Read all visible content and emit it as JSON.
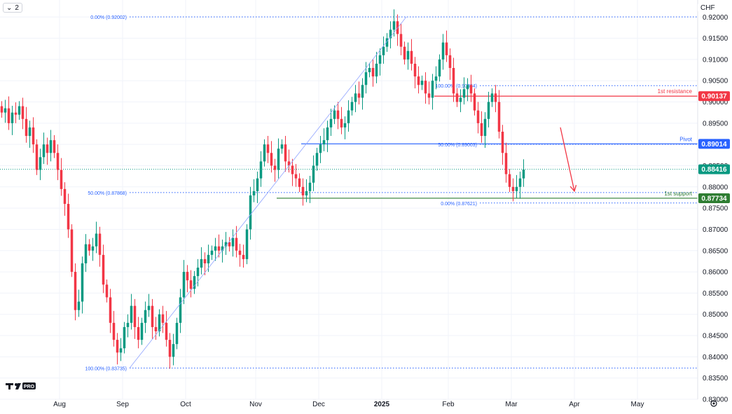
{
  "toolbar": {
    "interval_label": "2",
    "currency_label": "CHF"
  },
  "colors": {
    "up": "#089981",
    "down": "#f23645",
    "resistance": "#f23645",
    "pivot": "#2962ff",
    "support": "#2e7d32",
    "fib": "#2962ff",
    "grid": "#f0f3fa",
    "price": "#089981"
  },
  "chart_data": {
    "type": "candlestick",
    "symbol_currency": "CHF",
    "y_range": [
      0.83,
      0.924
    ],
    "x_range_bars": [
      0,
      200
    ],
    "y_ticks": [
      "0.92000",
      "0.91500",
      "0.91000",
      "0.90500",
      "0.90000",
      "0.89500",
      "0.89000",
      "0.88500",
      "0.88000",
      "0.87500",
      "0.87000",
      "0.86500",
      "0.86000",
      "0.85500",
      "0.85000",
      "0.84500",
      "0.84000",
      "0.83500",
      "0.83000"
    ],
    "x_ticks": [
      {
        "label": "Aug",
        "bar": 17
      },
      {
        "label": "Sep",
        "bar": 35
      },
      {
        "label": "Oct",
        "bar": 53
      },
      {
        "label": "Nov",
        "bar": 73
      },
      {
        "label": "Dec",
        "bar": 91
      },
      {
        "label": "2025",
        "bar": 109
      },
      {
        "label": "Feb",
        "bar": 128
      },
      {
        "label": "Mar",
        "bar": 146
      },
      {
        "label": "Apr",
        "bar": 164
      },
      {
        "label": "May",
        "bar": 182
      }
    ],
    "levels": [
      {
        "name": "1st resistance",
        "value": 0.90137,
        "label": "0.90137",
        "color": "#f23645",
        "from_bar": 124
      },
      {
        "name": "Pivot",
        "value": 0.89014,
        "label": "0.89014",
        "color": "#2962ff",
        "from_bar": 86
      },
      {
        "name": "Last price",
        "value": 0.88416,
        "label": "0.88416",
        "color": "#089981",
        "from_bar": 0
      },
      {
        "name": "1st support",
        "value": 0.87734,
        "label": "0.87734",
        "color": "#2e7d32",
        "from_bar": 79
      }
    ],
    "fibonacci": [
      {
        "text": "0.00% (0.92002)",
        "value": 0.92002,
        "from_bar": 37
      },
      {
        "text": "50.00% (0.87868)",
        "value": 0.87868,
        "from_bar": 37
      },
      {
        "text": "100.00% (0.83735)",
        "value": 0.83735,
        "from_bar": 37
      },
      {
        "text": "100.00% (0.90384)",
        "value": 0.90384,
        "from_bar": 137
      },
      {
        "text": "50.00% (0.89003)",
        "value": 0.89003,
        "from_bar": 137
      },
      {
        "text": "0.00% (0.87621)",
        "value": 0.87621,
        "from_bar": 137
      }
    ],
    "trend_line": [
      {
        "bar": 37,
        "value": 0.83735
      },
      {
        "bar": 116,
        "value": 0.92002
      }
    ],
    "arrow": [
      {
        "bar": 160,
        "value": 0.894
      },
      {
        "bar": 164,
        "value": 0.879
      }
    ],
    "candles_close": [
      0.8975,
      0.8985,
      0.895,
      0.8975,
      0.897,
      0.899,
      0.896,
      0.892,
      0.894,
      0.89,
      0.884,
      0.887,
      0.89,
      0.888,
      0.891,
      0.888,
      0.884,
      0.8795,
      0.876,
      0.87,
      0.86,
      0.851,
      0.853,
      0.862,
      0.8665,
      0.865,
      0.866,
      0.869,
      0.864,
      0.857,
      0.854,
      0.848,
      0.844,
      0.841,
      0.842,
      0.847,
      0.848,
      0.852,
      0.847,
      0.844,
      0.848,
      0.851,
      0.852,
      0.847,
      0.846,
      0.85,
      0.848,
      0.844,
      0.84,
      0.843,
      0.848,
      0.854,
      0.86,
      0.858,
      0.856,
      0.859,
      0.861,
      0.863,
      0.862,
      0.864,
      0.865,
      0.866,
      0.865,
      0.866,
      0.867,
      0.866,
      0.868,
      0.865,
      0.864,
      0.863,
      0.87,
      0.878,
      0.879,
      0.882,
      0.886,
      0.89,
      0.888,
      0.885,
      0.884,
      0.889,
      0.89,
      0.886,
      0.885,
      0.883,
      0.882,
      0.88,
      0.878,
      0.879,
      0.881,
      0.885,
      0.888,
      0.89,
      0.891,
      0.894,
      0.896,
      0.898,
      0.896,
      0.894,
      0.895,
      0.898,
      0.9,
      0.902,
      0.901,
      0.904,
      0.907,
      0.908,
      0.906,
      0.909,
      0.911,
      0.913,
      0.915,
      0.917,
      0.919,
      0.916,
      0.913,
      0.91,
      0.912,
      0.909,
      0.906,
      0.904,
      0.905,
      0.902,
      0.901,
      0.905,
      0.906,
      0.91,
      0.914,
      0.911,
      0.908,
      0.902,
      0.9,
      0.901,
      0.903,
      0.904,
      0.902,
      0.898,
      0.895,
      0.892,
      0.896,
      0.9,
      0.902,
      0.9,
      0.893,
      0.888,
      0.883,
      0.88,
      0.879,
      0.88,
      0.882,
      0.8841
    ]
  }
}
